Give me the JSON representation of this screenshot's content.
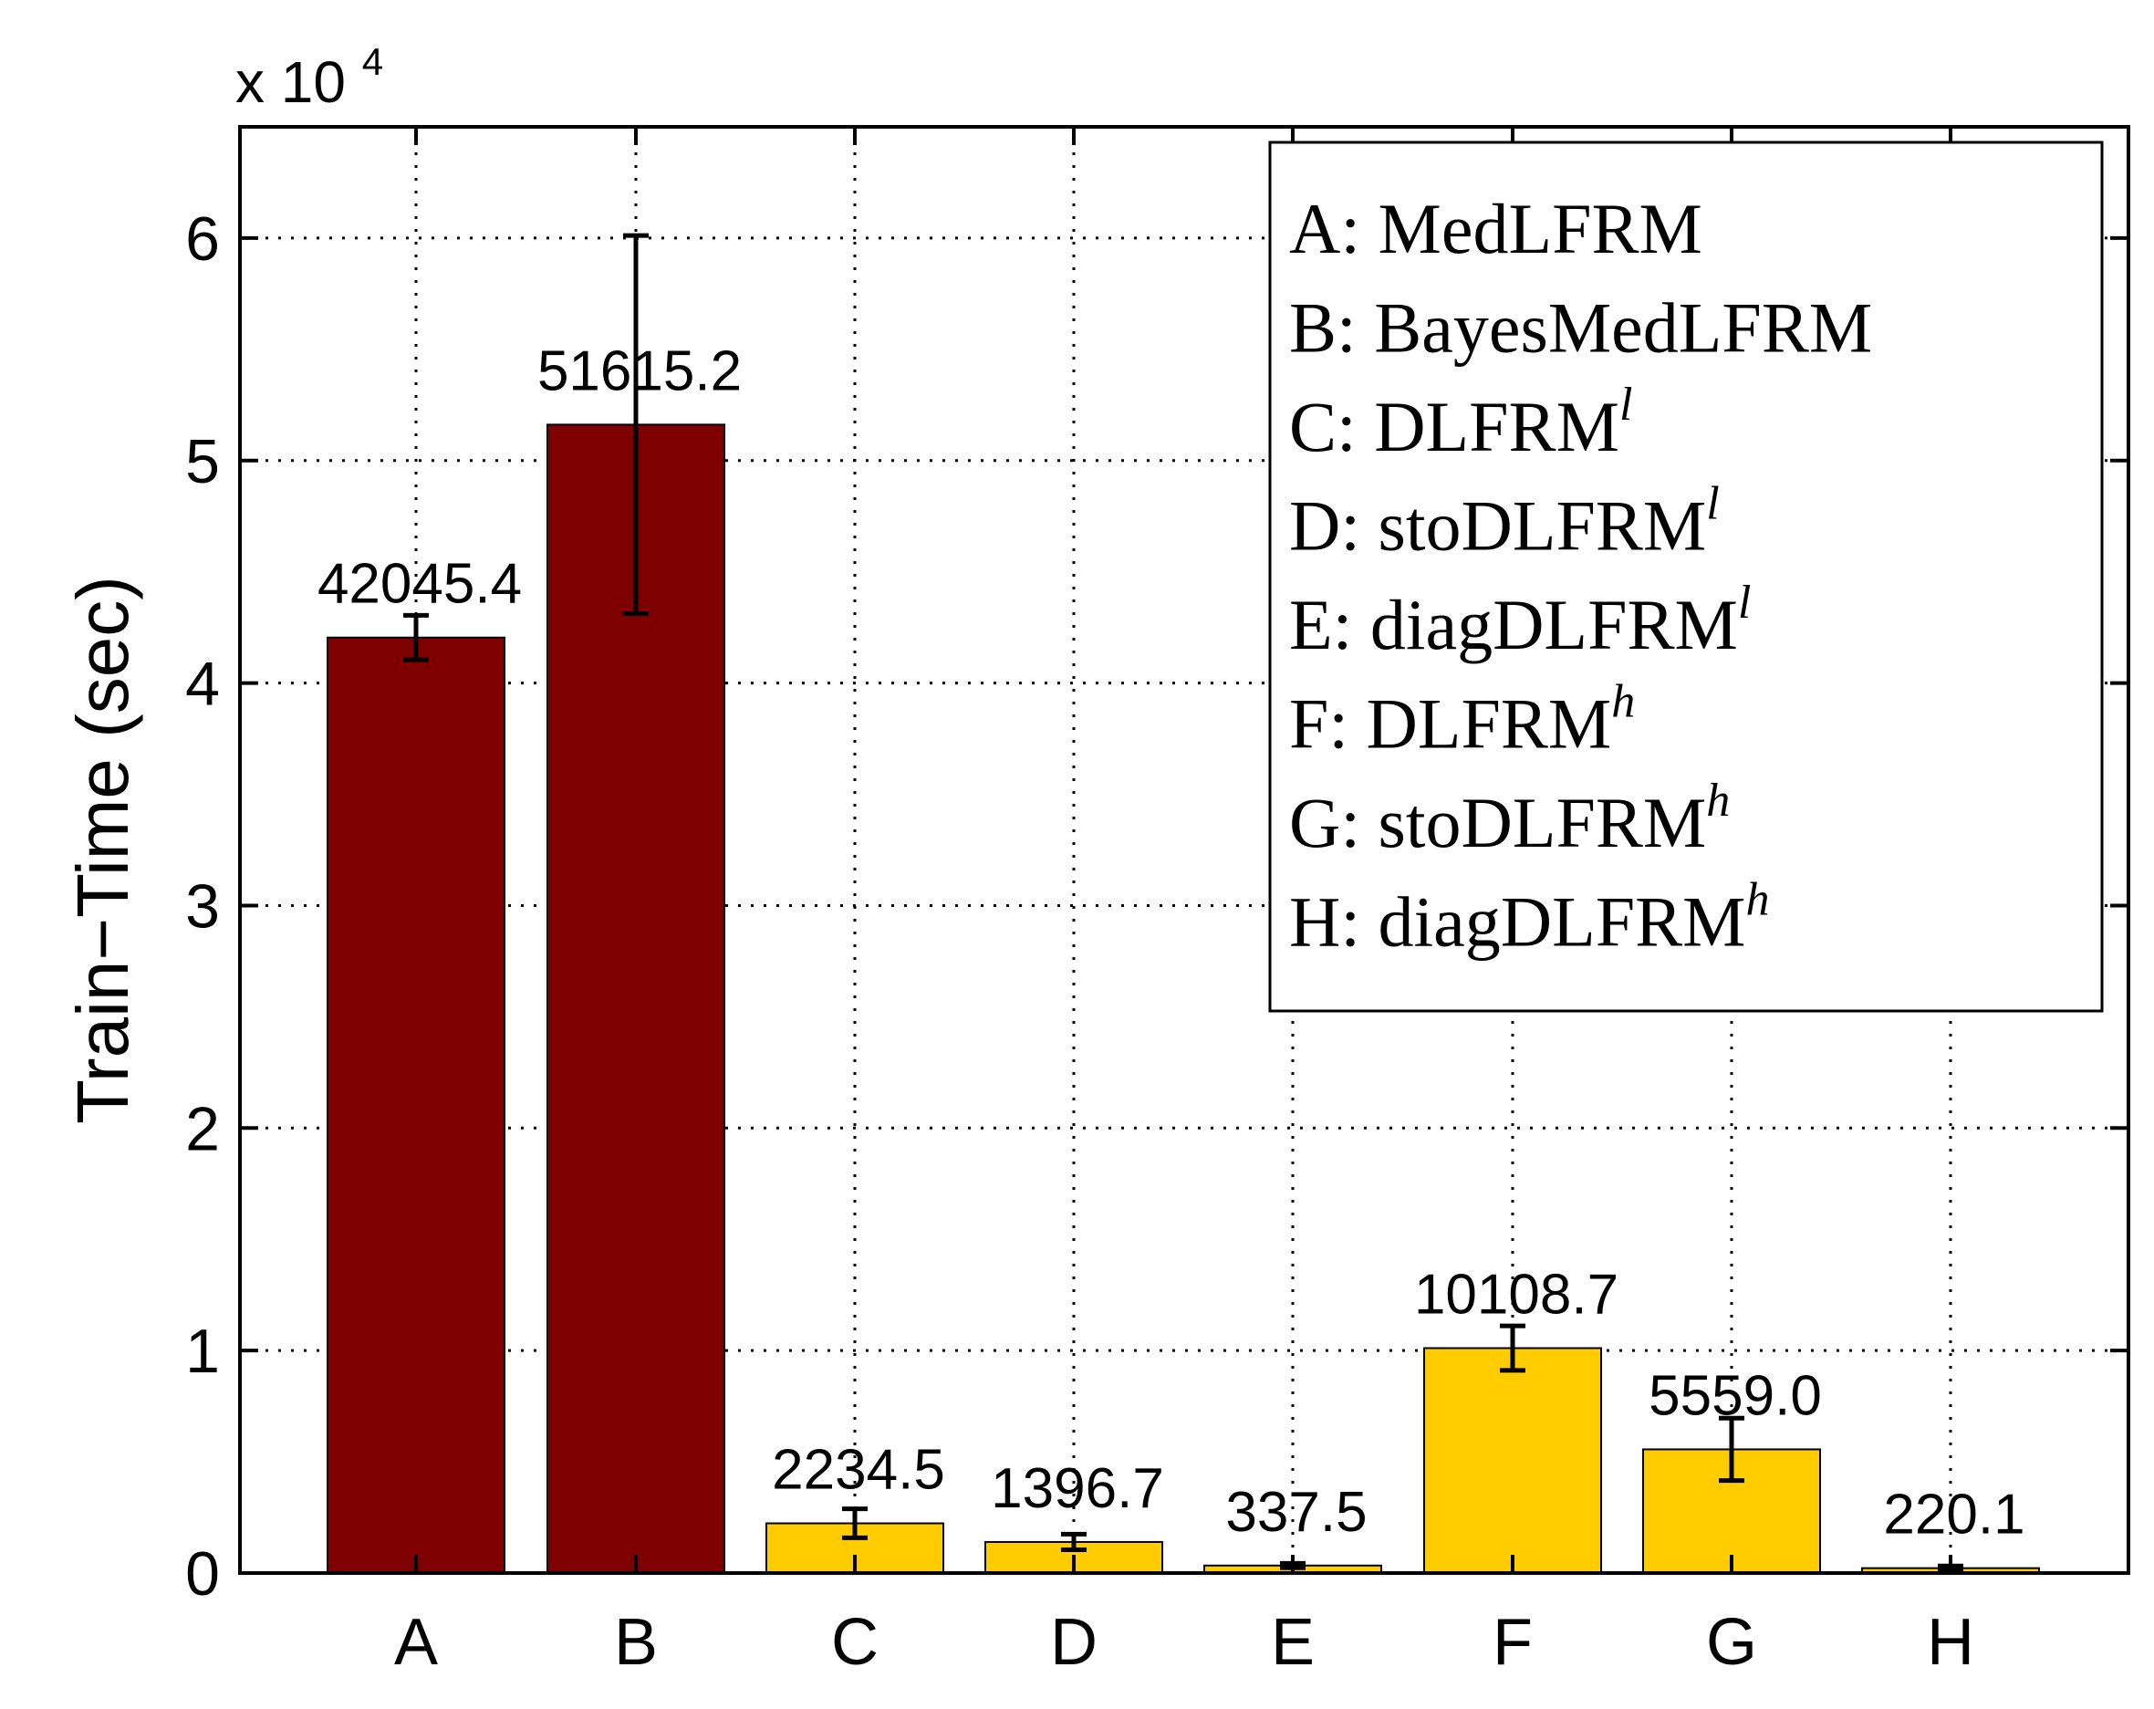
{
  "chart_data": {
    "type": "bar",
    "categories": [
      "A",
      "B",
      "C",
      "D",
      "E",
      "F",
      "G",
      "H"
    ],
    "values": [
      42045.4,
      51615.2,
      2234.5,
      1396.7,
      337.5,
      10108.7,
      5559.0,
      220.1
    ],
    "value_labels": [
      "42045.4",
      "51615.2",
      "2234.5",
      "1396.7",
      "337.5",
      "10108.7",
      "5559.0",
      "220.1"
    ],
    "errors": [
      1000,
      8500,
      650,
      350,
      100,
      1000,
      1400,
      100
    ],
    "bar_colors": [
      "#7f0000",
      "#7f0000",
      "#ffcc00",
      "#ffcc00",
      "#ffcc00",
      "#ffcc00",
      "#ffcc00",
      "#ffcc00"
    ],
    "ylabel": "Train−Time (sec)",
    "y_multiplier_base": "x 10",
    "y_multiplier_exp": "4",
    "yticks": [
      "0",
      "1",
      "2",
      "3",
      "4",
      "5",
      "6"
    ],
    "ylim": [
      0,
      65000
    ],
    "grid": true,
    "legend_position": "top-right",
    "legend": [
      {
        "text": "A: MedLFRM",
        "sup": ""
      },
      {
        "text": "B: BayesMedLFRM",
        "sup": ""
      },
      {
        "text": "C: DLFRM",
        "sup": "l"
      },
      {
        "text": "D: stoDLFRM",
        "sup": "l"
      },
      {
        "text": "E: diagDLFRM",
        "sup": "l"
      },
      {
        "text": "F: DLFRM",
        "sup": "h"
      },
      {
        "text": "G: stoDLFRM",
        "sup": "h"
      },
      {
        "text": "H: diagDLFRM",
        "sup": "h"
      }
    ]
  }
}
